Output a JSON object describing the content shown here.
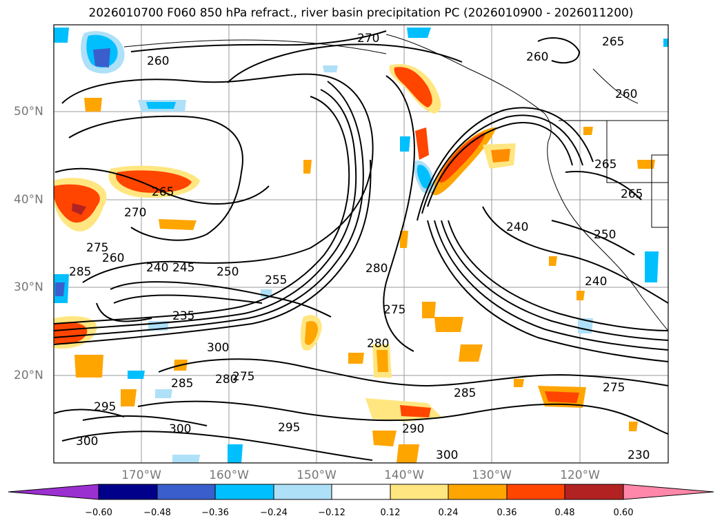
{
  "title": "2026010700 F060 850 hPa refract., river basin precipitation PC (2026010900 - 2026011200)",
  "map": {
    "lat_labels": [
      "50°N",
      "40°N",
      "30°N",
      "20°N"
    ],
    "lon_labels": [
      "170°W",
      "160°W",
      "150°W",
      "140°W",
      "130°W",
      "120°W"
    ],
    "contour_labels": [
      "260",
      "270",
      "265",
      "260",
      "265",
      "265",
      "260",
      "265",
      "240",
      "250",
      "270",
      "275",
      "285",
      "260",
      "240",
      "245",
      "250",
      "255",
      "280",
      "235",
      "275",
      "280",
      "300",
      "285",
      "280",
      "275",
      "295",
      "295",
      "300",
      "300",
      "290",
      "285",
      "275",
      "300",
      "240",
      "230"
    ]
  },
  "colorbar": {
    "ticks": [
      "−0.60",
      "−0.48",
      "−0.36",
      "−0.24",
      "−0.12",
      "0.12",
      "0.24",
      "0.36",
      "0.48",
      "0.60"
    ],
    "colors": [
      "#9b30d0",
      "#00008b",
      "#3a5fcd",
      "#00bfff",
      "#aee0f8",
      "#ffffff",
      "#ffe680",
      "#ffa500",
      "#ff4500",
      "#b22222",
      "#ff88aa"
    ]
  }
}
